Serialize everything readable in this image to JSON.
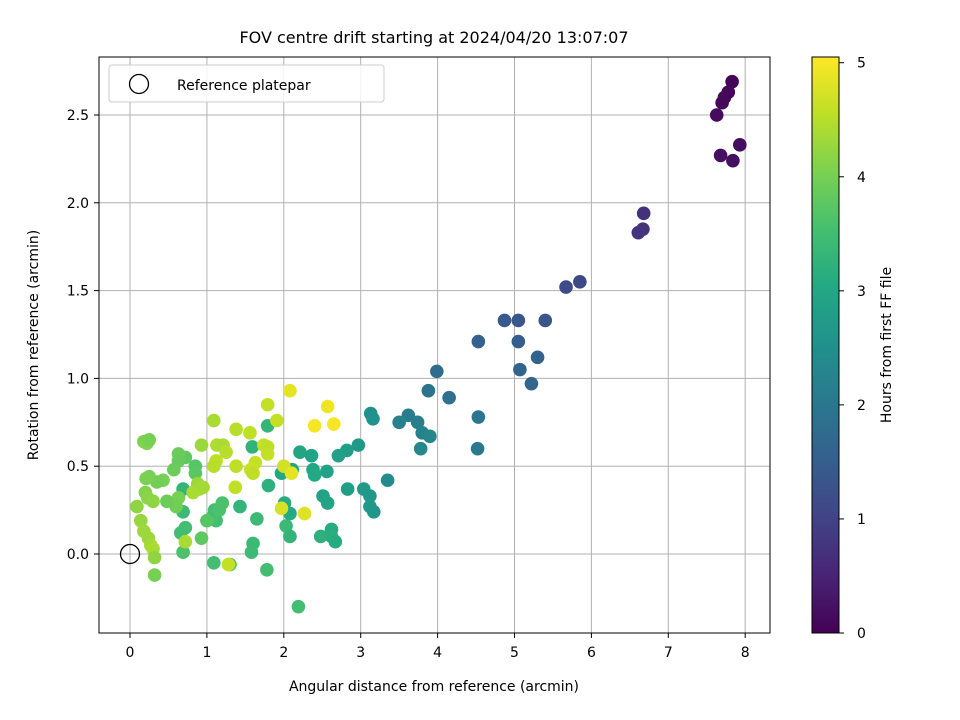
{
  "chart_data": {
    "type": "scatter",
    "title": "FOV centre drift starting at 2024/04/20 13:07:07",
    "xlabel": "Angular distance from reference (arcmin)",
    "ylabel": "Rotation from reference (arcmin)",
    "xlim": [
      -0.4,
      8.3
    ],
    "ylim": [
      -0.45,
      2.85
    ],
    "xticks": [
      0,
      1,
      2,
      3,
      4,
      5,
      6,
      7,
      8
    ],
    "xtick_labels": [
      "0",
      "1",
      "2",
      "3",
      "4",
      "5",
      "6",
      "7",
      "8"
    ],
    "yticks": [
      0.0,
      0.5,
      1.0,
      1.5,
      2.0,
      2.5
    ],
    "ytick_labels": [
      "0.0",
      "0.5",
      "1.0",
      "1.5",
      "2.0",
      "2.5"
    ],
    "grid": true,
    "legend": {
      "position": "top-left",
      "entries": [
        "Reference platepar"
      ]
    },
    "reference_point": {
      "x": 0.0,
      "y": 0.0
    },
    "colorbar": {
      "label": "Hours from first FF file",
      "colormap": "viridis",
      "range": [
        0,
        5.05
      ],
      "ticks": [
        0,
        1,
        2,
        3,
        4,
        5
      ],
      "tick_labels": [
        "0",
        "1",
        "2",
        "3",
        "4",
        "5"
      ]
    },
    "points": [
      {
        "x": 7.83,
        "y": 2.69,
        "c": 0.05
      },
      {
        "x": 7.78,
        "y": 2.63,
        "c": 0.08
      },
      {
        "x": 7.73,
        "y": 2.6,
        "c": 0.1
      },
      {
        "x": 7.7,
        "y": 2.57,
        "c": 0.12
      },
      {
        "x": 7.63,
        "y": 2.5,
        "c": 0.15
      },
      {
        "x": 7.93,
        "y": 2.33,
        "c": 0.18
      },
      {
        "x": 7.68,
        "y": 2.27,
        "c": 0.2
      },
      {
        "x": 7.84,
        "y": 2.24,
        "c": 0.22
      },
      {
        "x": 6.68,
        "y": 1.94,
        "c": 0.7
      },
      {
        "x": 6.67,
        "y": 1.85,
        "c": 0.72
      },
      {
        "x": 6.61,
        "y": 1.83,
        "c": 0.74
      },
      {
        "x": 5.85,
        "y": 1.55,
        "c": 1.1
      },
      {
        "x": 5.67,
        "y": 1.52,
        "c": 1.15
      },
      {
        "x": 4.87,
        "y": 1.33,
        "c": 1.4
      },
      {
        "x": 5.05,
        "y": 1.33,
        "c": 1.38
      },
      {
        "x": 5.4,
        "y": 1.33,
        "c": 1.35
      },
      {
        "x": 4.53,
        "y": 1.21,
        "c": 1.55
      },
      {
        "x": 5.05,
        "y": 1.21,
        "c": 1.5
      },
      {
        "x": 5.3,
        "y": 1.12,
        "c": 1.6
      },
      {
        "x": 5.07,
        "y": 1.05,
        "c": 1.62
      },
      {
        "x": 5.22,
        "y": 0.97,
        "c": 1.65
      },
      {
        "x": 3.99,
        "y": 1.04,
        "c": 1.8
      },
      {
        "x": 4.15,
        "y": 0.89,
        "c": 1.85
      },
      {
        "x": 3.88,
        "y": 0.93,
        "c": 1.9
      },
      {
        "x": 4.53,
        "y": 0.78,
        "c": 1.95
      },
      {
        "x": 4.52,
        "y": 0.6,
        "c": 2.0
      },
      {
        "x": 3.62,
        "y": 0.79,
        "c": 2.1
      },
      {
        "x": 3.74,
        "y": 0.75,
        "c": 2.15
      },
      {
        "x": 3.5,
        "y": 0.75,
        "c": 2.2
      },
      {
        "x": 3.8,
        "y": 0.69,
        "c": 2.25
      },
      {
        "x": 3.9,
        "y": 0.67,
        "c": 2.3
      },
      {
        "x": 3.78,
        "y": 0.6,
        "c": 2.35
      },
      {
        "x": 3.13,
        "y": 0.8,
        "c": 2.5
      },
      {
        "x": 3.16,
        "y": 0.77,
        "c": 2.55
      },
      {
        "x": 3.35,
        "y": 0.42,
        "c": 2.4
      },
      {
        "x": 2.97,
        "y": 0.62,
        "c": 2.7
      },
      {
        "x": 2.82,
        "y": 0.59,
        "c": 2.8
      },
      {
        "x": 2.71,
        "y": 0.56,
        "c": 2.85
      },
      {
        "x": 2.36,
        "y": 0.56,
        "c": 2.9
      },
      {
        "x": 2.21,
        "y": 0.58,
        "c": 2.95
      },
      {
        "x": 2.56,
        "y": 0.47,
        "c": 2.9
      },
      {
        "x": 2.38,
        "y": 0.48,
        "c": 3.0
      },
      {
        "x": 2.4,
        "y": 0.45,
        "c": 3.05
      },
      {
        "x": 2.11,
        "y": 0.48,
        "c": 2.95
      },
      {
        "x": 1.97,
        "y": 0.46,
        "c": 3.0
      },
      {
        "x": 2.83,
        "y": 0.37,
        "c": 2.8
      },
      {
        "x": 3.04,
        "y": 0.37,
        "c": 2.75
      },
      {
        "x": 3.12,
        "y": 0.33,
        "c": 2.7
      },
      {
        "x": 3.12,
        "y": 0.27,
        "c": 2.7
      },
      {
        "x": 3.17,
        "y": 0.24,
        "c": 2.65
      },
      {
        "x": 2.51,
        "y": 0.33,
        "c": 2.9
      },
      {
        "x": 2.57,
        "y": 0.29,
        "c": 2.95
      },
      {
        "x": 2.01,
        "y": 0.29,
        "c": 3.1
      },
      {
        "x": 2.08,
        "y": 0.23,
        "c": 3.05
      },
      {
        "x": 1.8,
        "y": 0.39,
        "c": 3.2
      },
      {
        "x": 1.79,
        "y": 0.73,
        "c": 3.3
      },
      {
        "x": 1.59,
        "y": 0.61,
        "c": 3.25
      },
      {
        "x": 1.43,
        "y": 0.27,
        "c": 3.3
      },
      {
        "x": 1.65,
        "y": 0.2,
        "c": 3.4
      },
      {
        "x": 2.03,
        "y": 0.16,
        "c": 3.4
      },
      {
        "x": 2.08,
        "y": 0.1,
        "c": 3.3
      },
      {
        "x": 2.48,
        "y": 0.1,
        "c": 3.2
      },
      {
        "x": 2.62,
        "y": 0.14,
        "c": 3.1
      },
      {
        "x": 2.62,
        "y": 0.1,
        "c": 3.15
      },
      {
        "x": 2.67,
        "y": 0.07,
        "c": 3.1
      },
      {
        "x": 1.6,
        "y": 0.06,
        "c": 3.4
      },
      {
        "x": 1.58,
        "y": 0.01,
        "c": 3.45
      },
      {
        "x": 1.78,
        "y": -0.09,
        "c": 3.5
      },
      {
        "x": 2.19,
        "y": -0.3,
        "c": 3.5
      },
      {
        "x": 1.09,
        "y": -0.05,
        "c": 3.5
      },
      {
        "x": 1.3,
        "y": -0.06,
        "c": 3.55
      },
      {
        "x": 1.12,
        "y": 0.19,
        "c": 3.5
      },
      {
        "x": 1.07,
        "y": 0.21,
        "c": 3.55
      },
      {
        "x": 1.1,
        "y": 0.25,
        "c": 3.5
      },
      {
        "x": 1.16,
        "y": 0.25,
        "c": 3.6
      },
      {
        "x": 1.2,
        "y": 0.29,
        "c": 3.6
      },
      {
        "x": 1.0,
        "y": 0.19,
        "c": 3.7
      },
      {
        "x": 0.93,
        "y": 0.09,
        "c": 3.8
      },
      {
        "x": 0.69,
        "y": 0.37,
        "c": 3.3
      },
      {
        "x": 0.69,
        "y": 0.24,
        "c": 3.4
      },
      {
        "x": 0.72,
        "y": 0.15,
        "c": 3.5
      },
      {
        "x": 0.66,
        "y": 0.12,
        "c": 3.5
      },
      {
        "x": 0.69,
        "y": 0.01,
        "c": 3.6
      },
      {
        "x": 0.72,
        "y": 0.55,
        "c": 3.8
      },
      {
        "x": 0.85,
        "y": 0.5,
        "c": 3.7
      },
      {
        "x": 0.85,
        "y": 0.46,
        "c": 3.75
      },
      {
        "x": 0.63,
        "y": 0.57,
        "c": 3.9
      },
      {
        "x": 0.63,
        "y": 0.53,
        "c": 3.85
      },
      {
        "x": 0.57,
        "y": 0.48,
        "c": 3.9
      },
      {
        "x": 0.63,
        "y": 0.32,
        "c": 4.0
      },
      {
        "x": 0.6,
        "y": 0.27,
        "c": 3.95
      },
      {
        "x": 0.48,
        "y": 0.3,
        "c": 3.9
      },
      {
        "x": 0.43,
        "y": 0.42,
        "c": 4.0
      },
      {
        "x": 0.35,
        "y": 0.41,
        "c": 3.95
      },
      {
        "x": 0.25,
        "y": 0.44,
        "c": 4.0
      },
      {
        "x": 0.21,
        "y": 0.43,
        "c": 4.05
      },
      {
        "x": 0.18,
        "y": 0.64,
        "c": 4.05
      },
      {
        "x": 0.22,
        "y": 0.63,
        "c": 4.1
      },
      {
        "x": 0.25,
        "y": 0.65,
        "c": 4.0
      },
      {
        "x": 0.2,
        "y": 0.35,
        "c": 4.1
      },
      {
        "x": 0.23,
        "y": 0.32,
        "c": 4.15
      },
      {
        "x": 0.3,
        "y": 0.3,
        "c": 4.2
      },
      {
        "x": 0.09,
        "y": 0.27,
        "c": 4.2
      },
      {
        "x": 0.14,
        "y": 0.19,
        "c": 4.25
      },
      {
        "x": 0.18,
        "y": 0.13,
        "c": 4.3
      },
      {
        "x": 0.24,
        "y": 0.09,
        "c": 4.3
      },
      {
        "x": 0.27,
        "y": 0.05,
        "c": 4.35
      },
      {
        "x": 0.3,
        "y": 0.03,
        "c": 4.4
      },
      {
        "x": 0.32,
        "y": -0.02,
        "c": 4.2
      },
      {
        "x": 0.32,
        "y": -0.12,
        "c": 4.0
      },
      {
        "x": 0.72,
        "y": 0.07,
        "c": 4.4
      },
      {
        "x": 0.93,
        "y": 0.62,
        "c": 4.3
      },
      {
        "x": 1.09,
        "y": 0.76,
        "c": 4.4
      },
      {
        "x": 1.13,
        "y": 0.62,
        "c": 4.45
      },
      {
        "x": 1.21,
        "y": 0.62,
        "c": 4.4
      },
      {
        "x": 1.25,
        "y": 0.58,
        "c": 4.5
      },
      {
        "x": 1.12,
        "y": 0.53,
        "c": 4.55
      },
      {
        "x": 1.09,
        "y": 0.5,
        "c": 4.5
      },
      {
        "x": 0.88,
        "y": 0.4,
        "c": 4.3
      },
      {
        "x": 0.95,
        "y": 0.38,
        "c": 4.35
      },
      {
        "x": 0.9,
        "y": 0.37,
        "c": 4.35
      },
      {
        "x": 0.82,
        "y": 0.35,
        "c": 4.4
      },
      {
        "x": 1.38,
        "y": 0.71,
        "c": 4.5
      },
      {
        "x": 1.56,
        "y": 0.69,
        "c": 4.55
      },
      {
        "x": 1.38,
        "y": 0.5,
        "c": 4.55
      },
      {
        "x": 1.37,
        "y": 0.38,
        "c": 4.55
      },
      {
        "x": 1.74,
        "y": 0.62,
        "c": 4.6
      },
      {
        "x": 1.79,
        "y": 0.61,
        "c": 4.55
      },
      {
        "x": 1.79,
        "y": 0.57,
        "c": 4.6
      },
      {
        "x": 1.63,
        "y": 0.52,
        "c": 4.6
      },
      {
        "x": 1.57,
        "y": 0.48,
        "c": 4.65
      },
      {
        "x": 1.6,
        "y": 0.46,
        "c": 4.55
      },
      {
        "x": 1.79,
        "y": 0.85,
        "c": 4.6
      },
      {
        "x": 1.91,
        "y": 0.76,
        "c": 4.6
      },
      {
        "x": 2.0,
        "y": 0.5,
        "c": 4.7
      },
      {
        "x": 2.08,
        "y": 0.93,
        "c": 4.85
      },
      {
        "x": 2.57,
        "y": 0.84,
        "c": 4.95
      },
      {
        "x": 2.4,
        "y": 0.73,
        "c": 5.0
      },
      {
        "x": 2.65,
        "y": 0.74,
        "c": 5.0
      },
      {
        "x": 2.1,
        "y": 0.46,
        "c": 4.85
      },
      {
        "x": 1.97,
        "y": 0.26,
        "c": 4.75
      },
      {
        "x": 2.27,
        "y": 0.23,
        "c": 4.8
      },
      {
        "x": 1.28,
        "y": -0.06,
        "c": 4.6
      }
    ]
  }
}
